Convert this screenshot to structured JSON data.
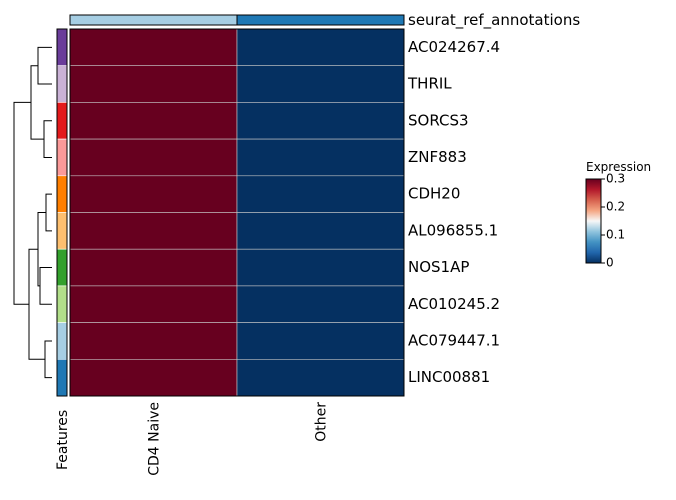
{
  "chart_data": {
    "type": "heatmap",
    "annotation_title": "seurat_ref_annotations",
    "annotation_colors": [
      "#a6cee3",
      "#1f78b4"
    ],
    "columns": [
      "CD4 Naive",
      "Other"
    ],
    "rows": [
      "AC024267.4",
      "THRIL",
      "SORCS3",
      "ZNF883",
      "CDH20",
      "AL096855.1",
      "NOS1AP",
      "AC010245.2",
      "AC079447.1",
      "LINC00881"
    ],
    "row_annotation_title": "Features",
    "row_annotation_colors": [
      "#6a3d9a",
      "#cab2d6",
      "#e31a1c",
      "#fb9a99",
      "#ff7f00",
      "#fdbf6f",
      "#33a02c",
      "#b2df8a",
      "#a6cee3",
      "#1f78b4"
    ],
    "values": [
      [
        0.3,
        0.0
      ],
      [
        0.3,
        0.0
      ],
      [
        0.3,
        0.0
      ],
      [
        0.3,
        0.0
      ],
      [
        0.3,
        0.0
      ],
      [
        0.3,
        0.0
      ],
      [
        0.3,
        0.0
      ],
      [
        0.3,
        0.0
      ],
      [
        0.3,
        0.0
      ],
      [
        0.3,
        0.0
      ]
    ],
    "legend": {
      "title": "Expression",
      "ticks": [
        "0",
        "0.1",
        "0.2",
        "0.3"
      ],
      "tick_values": [
        0,
        0.1,
        0.2,
        0.3
      ],
      "range": [
        0,
        0.3
      ],
      "colors": [
        "#053061",
        "#2166ac",
        "#4393c3",
        "#92c5de",
        "#f7f7f7",
        "#f4a582",
        "#d6604d",
        "#b2182b",
        "#67001f"
      ],
      "placement": "right"
    },
    "dendrogram": "left"
  }
}
